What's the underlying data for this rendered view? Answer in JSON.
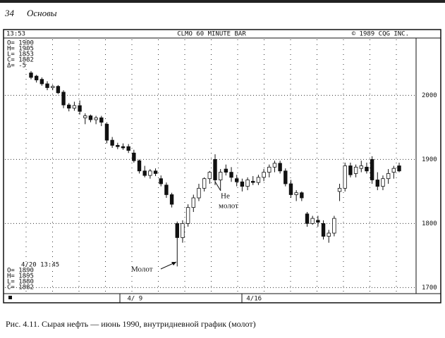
{
  "header": {
    "page": "34",
    "section": "Основы"
  },
  "chart_data": {
    "type": "candlestick",
    "title": "CLMO 60 MINUTE BAR",
    "time": "13:53",
    "copyright": "© 1989 CQG INC.",
    "info_top": [
      "O= 1900",
      "H= 1905",
      "L= 1853",
      "C= 1882",
      "Δ= -5"
    ],
    "info_bottom": [
      "4/20 13:45",
      "O= 1890",
      "H= 1895",
      "L= 1880",
      "C= 1882"
    ],
    "annotations": [
      "Молот",
      "Не",
      "молот"
    ],
    "categories": [
      null,
      null,
      null,
      null,
      null,
      null,
      null,
      null,
      null,
      null,
      null,
      null,
      null,
      null,
      null,
      null,
      null,
      "4/ 9",
      null,
      null,
      null,
      null,
      null,
      null,
      null,
      null,
      null,
      null,
      null,
      null,
      null,
      null,
      null,
      null,
      null,
      null,
      null,
      null,
      null,
      "4/16",
      null,
      null,
      null,
      null,
      null,
      null,
      null,
      null,
      null,
      null,
      null,
      null,
      null,
      null,
      null,
      null,
      null,
      null,
      null,
      null,
      null,
      null,
      null,
      null,
      null,
      null,
      null,
      null,
      null
    ],
    "open": [
      2035,
      2030,
      2025,
      2018,
      2012,
      2014,
      2005,
      1985,
      1980,
      1984,
      1965,
      1968,
      1962,
      1965,
      1955,
      1930,
      1922,
      1920,
      1920,
      1910,
      1898,
      1882,
      1875,
      1882,
      1870,
      1860,
      1845,
      1800,
      1778,
      1800,
      1825,
      1840,
      1855,
      1870,
      1900,
      1868,
      1885,
      1880,
      1870,
      1865,
      1858,
      1866,
      1864,
      1872,
      1880,
      1888,
      1894,
      1882,
      1862,
      1845,
      1848,
      1815,
      1800,
      1805,
      1800,
      1780,
      1785,
      1850,
      1855,
      1890,
      1878,
      1886,
      1888,
      1900,
      1868,
      1858,
      1870,
      1880,
      1890
    ],
    "high": [
      2038,
      2032,
      2028,
      2022,
      2016,
      2016,
      2008,
      1988,
      1990,
      1992,
      1972,
      1970,
      1968,
      1968,
      1958,
      1935,
      1926,
      1925,
      1924,
      1915,
      1900,
      1890,
      1885,
      1886,
      1875,
      1864,
      1848,
      1803,
      1805,
      1830,
      1845,
      1862,
      1872,
      1882,
      1908,
      1885,
      1892,
      1888,
      1876,
      1870,
      1872,
      1874,
      1876,
      1885,
      1892,
      1898,
      1898,
      1886,
      1868,
      1852,
      1850,
      1818,
      1812,
      1812,
      1805,
      1790,
      1812,
      1862,
      1895,
      1895,
      1892,
      1898,
      1895,
      1905,
      1880,
      1875,
      1885,
      1890,
      1895
    ],
    "low": [
      2025,
      2020,
      2015,
      2008,
      2008,
      2002,
      1980,
      1975,
      1976,
      1970,
      1955,
      1958,
      1955,
      1952,
      1925,
      1918,
      1916,
      1915,
      1910,
      1895,
      1878,
      1872,
      1870,
      1874,
      1858,
      1840,
      1825,
      1733,
      1770,
      1795,
      1818,
      1835,
      1850,
      1862,
      1860,
      1852,
      1875,
      1865,
      1858,
      1850,
      1852,
      1860,
      1860,
      1866,
      1872,
      1880,
      1878,
      1858,
      1840,
      1835,
      1835,
      1795,
      1798,
      1795,
      1775,
      1770,
      1780,
      1835,
      1850,
      1872,
      1872,
      1880,
      1878,
      1862,
      1852,
      1852,
      1862,
      1870,
      1880
    ],
    "close": [
      2028,
      2024,
      2018,
      2012,
      2014,
      2004,
      1985,
      1980,
      1984,
      1975,
      1968,
      1962,
      1965,
      1958,
      1930,
      1922,
      1920,
      1918,
      1914,
      1898,
      1882,
      1875,
      1882,
      1878,
      1862,
      1845,
      1830,
      1778,
      1800,
      1825,
      1840,
      1855,
      1870,
      1880,
      1868,
      1880,
      1880,
      1872,
      1865,
      1858,
      1868,
      1864,
      1872,
      1880,
      1888,
      1894,
      1882,
      1862,
      1845,
      1848,
      1840,
      1800,
      1808,
      1802,
      1780,
      1785,
      1808,
      1855,
      1890,
      1876,
      1888,
      1890,
      1882,
      1868,
      1858,
      1870,
      1878,
      1886,
      1882
    ],
    "ylim": [
      1690,
      2090
    ],
    "yticks": [
      1700,
      1800,
      1900,
      2000
    ],
    "grid": true,
    "color": "#111"
  },
  "caption": "Рис. 4.11. Сырая нефть — июнь 1990, внутридневной график (молот)"
}
